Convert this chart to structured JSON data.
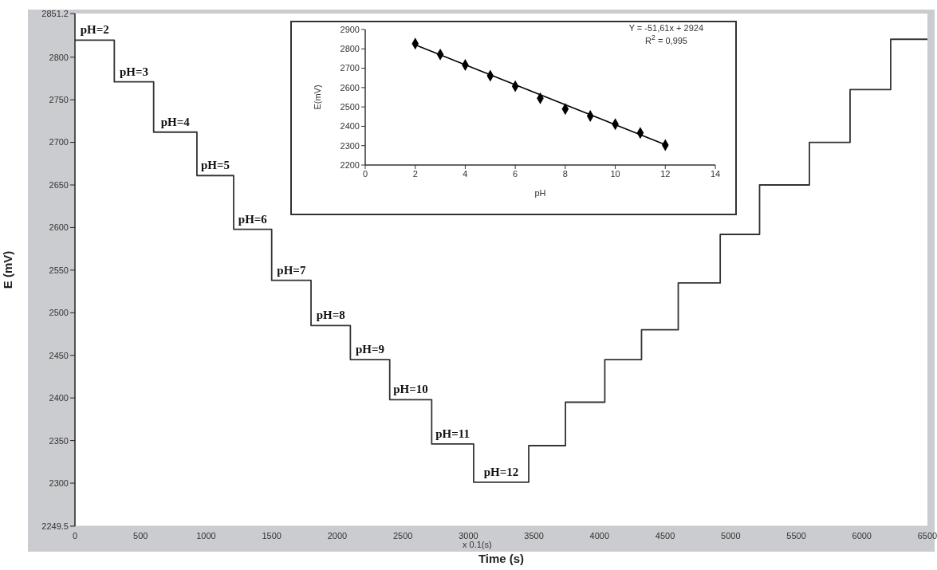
{
  "chart_data": [
    {
      "type": "step",
      "xlabel": "Time (s)",
      "ylabel": "E (mV)",
      "color": "#333333",
      "marker": "none",
      "grid": false,
      "legend": false,
      "x": [
        0,
        300,
        600,
        930,
        1210,
        1500,
        1800,
        2100,
        2400,
        2720,
        3040,
        3460,
        3740,
        4040,
        4320,
        4600,
        4920,
        5220,
        5600,
        5910,
        6220,
        6500
      ],
      "values": [
        2820,
        2771,
        2712,
        2661,
        2598,
        2538,
        2485,
        2445,
        2398,
        2346,
        2301,
        2344,
        2395,
        2445,
        2480,
        2535,
        2592,
        2650,
        2700,
        2762,
        2821,
        2821
      ],
      "xlim": [
        0,
        6500
      ],
      "xticks": [
        0,
        500,
        1000,
        1500,
        2000,
        2500,
        3000,
        3500,
        4000,
        4500,
        5000,
        5500,
        6000,
        6500
      ],
      "ylim": [
        2249.5,
        2851.2
      ],
      "yticks": [
        2249.5,
        2300,
        2350,
        2400,
        2450,
        2500,
        2550,
        2600,
        2650,
        2700,
        2750,
        2800,
        2851.2
      ],
      "annotations": [
        {
          "text": "pH=2",
          "x": 150,
          "y": 2820
        },
        {
          "text": "pH=3",
          "x": 450,
          "y": 2771
        },
        {
          "text": "pH=4",
          "x": 765,
          "y": 2712
        },
        {
          "text": "pH=5",
          "x": 1070,
          "y": 2661
        },
        {
          "text": "pH=6",
          "x": 1355,
          "y": 2598
        },
        {
          "text": "pH=7",
          "x": 1650,
          "y": 2538
        },
        {
          "text": "pH=8",
          "x": 1950,
          "y": 2485
        },
        {
          "text": "pH=9",
          "x": 2250,
          "y": 2445
        },
        {
          "text": "pH=10",
          "x": 2560,
          "y": 2398
        },
        {
          "text": "pH=11",
          "x": 2880,
          "y": 2346
        },
        {
          "text": "pH=12",
          "x": 3250,
          "y": 2301
        },
        "x 0.1(s)"
      ]
    },
    {
      "type": "scatter",
      "xlabel": "pH",
      "ylabel": "E(mV)",
      "grid": false,
      "legend": false,
      "series": [
        {
          "marker": "diamond",
          "color": "#000000",
          "x": [
            2,
            3,
            4,
            5,
            6,
            7,
            8,
            9,
            10,
            11,
            12
          ],
          "values": [
            2827,
            2771,
            2717,
            2661,
            2607,
            2545,
            2489,
            2453,
            2411,
            2366,
            2303
          ]
        },
        {
          "type": "line",
          "marker": "none",
          "color": "#000000",
          "x": [
            2,
            12
          ],
          "values": [
            2821,
            2305
          ]
        }
      ],
      "xlim": [
        0,
        14
      ],
      "xticks": [
        0,
        2,
        4,
        6,
        8,
        10,
        12,
        14
      ],
      "ylim": [
        2200,
        2900
      ],
      "yticks": [
        2200,
        2300,
        2400,
        2500,
        2600,
        2700,
        2800,
        2900
      ],
      "annotations": [
        "Y = -51,61x + 2924",
        "R$^{2}$ = 0,995"
      ]
    }
  ]
}
